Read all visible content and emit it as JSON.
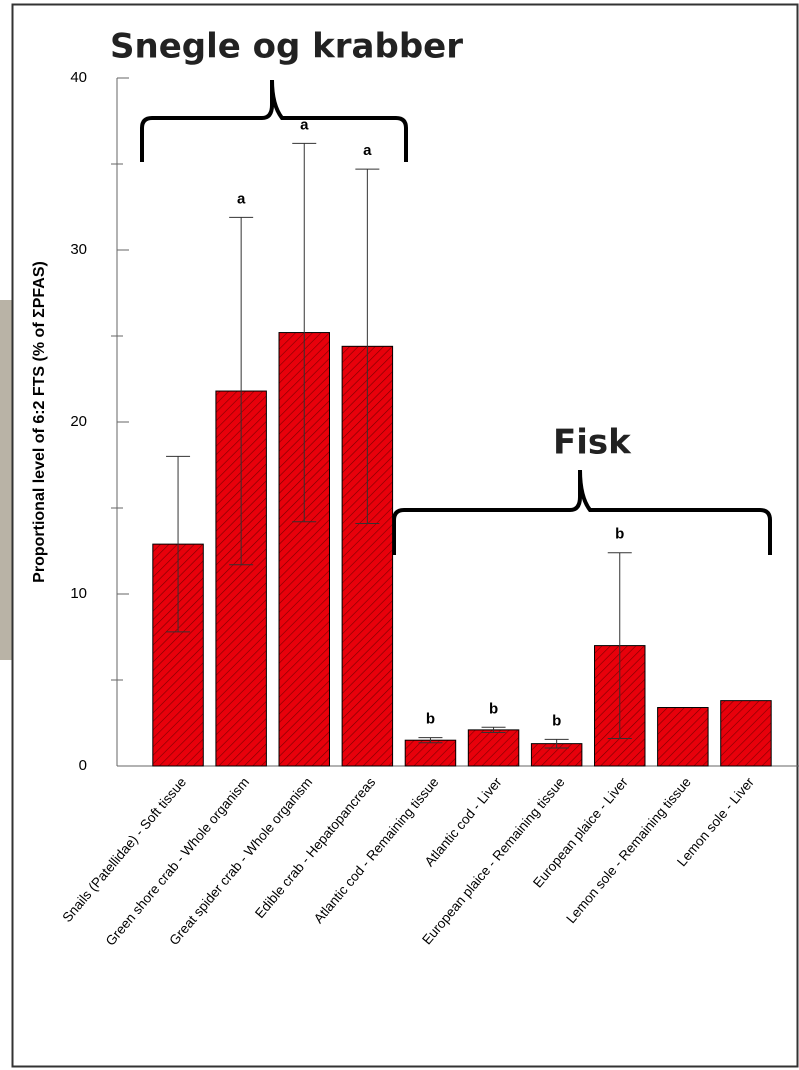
{
  "chart_data": {
    "type": "bar",
    "ylabel": "Proportional level of 6:2 FTS (% of ΣPFAS)",
    "categories": [
      "Snails (Patellidae) - Soft tissue",
      "Green shore crab - Whole organism",
      "Great spider crab - Whole organism",
      "Edible crab - Hepatopancreas",
      "Atlantic cod - Remaining tissue",
      "Atlantic cod - Liver",
      "European plaice - Remaining tissue",
      "European plaice - Liver",
      "Lemon sole - Remaining tissue",
      "Lemon sole - Liver"
    ],
    "values": [
      12.9,
      21.8,
      25.2,
      24.4,
      1.5,
      2.1,
      1.3,
      7.0,
      3.4,
      3.8
    ],
    "errors": [
      5.1,
      10.1,
      11.0,
      10.3,
      0.15,
      0.15,
      0.25,
      5.4,
      null,
      null
    ],
    "letters": [
      null,
      "a",
      "a",
      "a",
      "b",
      "b",
      "b",
      "b",
      null,
      null
    ],
    "color": "#e8000b",
    "ylim": [
      0,
      40
    ],
    "yticks": [
      0,
      10,
      20,
      30,
      40
    ],
    "annotations": [
      "Snegle og krabber",
      "Fisk"
    ]
  }
}
